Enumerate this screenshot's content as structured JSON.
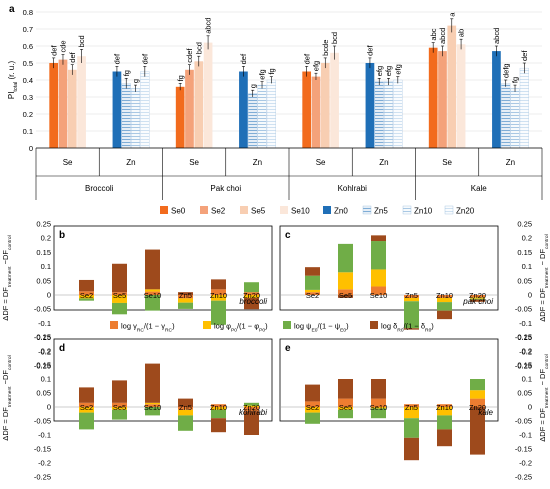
{
  "chart_data": [
    {
      "type": "bar",
      "panel": "a",
      "ylabel_main": "PI",
      "ylabel_sub": "total",
      "ylabel_unit": "(r. u.)",
      "ylim": [
        0,
        0.8
      ],
      "yticks": [
        "0",
        "0.1",
        "0.2",
        "0.3",
        "0.4",
        "0.5",
        "0.6",
        "0.7",
        "0.8"
      ],
      "groups": [
        "Broccoli",
        "Pak choi",
        "Kohlrabi",
        "Kale"
      ],
      "subgroups": [
        "Se",
        "Zn"
      ],
      "legend": [
        "Se0",
        "Se2",
        "Se5",
        "Se10",
        "Zn0",
        "Zn5",
        "Zn10",
        "Zn20"
      ],
      "series_colors": [
        "#f26b1d",
        "#f4a27a",
        "#f8ceb2",
        "#fbe7da",
        "#1f6fb7",
        "#7fadd6",
        "#b1cfe8",
        "#d9e8f4"
      ],
      "series_hatched": [
        false,
        false,
        false,
        false,
        false,
        true,
        true,
        true
      ],
      "values": [
        [
          0.5,
          0.52,
          0.46,
          0.54,
          0.45,
          0.38,
          0.35,
          0.45
        ],
        [
          0.36,
          0.46,
          0.51,
          0.62,
          0.45,
          0.32,
          0.37,
          0.4
        ],
        [
          0.45,
          0.42,
          0.5,
          0.56,
          0.5,
          0.39,
          0.39,
          0.4
        ],
        [
          0.59,
          0.57,
          0.72,
          0.61,
          0.57,
          0.38,
          0.35,
          0.47
        ]
      ],
      "errors": [
        [
          0.03,
          0.03,
          0.03,
          0.04,
          0.03,
          0.03,
          0.02,
          0.03
        ],
        [
          0.02,
          0.03,
          0.03,
          0.04,
          0.03,
          0.02,
          0.02,
          0.02
        ],
        [
          0.03,
          0.02,
          0.03,
          0.04,
          0.03,
          0.02,
          0.02,
          0.02
        ],
        [
          0.03,
          0.03,
          0.04,
          0.03,
          0.03,
          0.02,
          0.02,
          0.03
        ]
      ],
      "letters": [
        [
          "def",
          "cde",
          "def",
          "bcd",
          "def",
          "fg",
          "g",
          "def"
        ],
        [
          "fg",
          "cdef",
          "bcd",
          "abcd",
          "def",
          "g",
          "efg",
          "fg"
        ],
        [
          "def",
          "efg",
          "bcde",
          "bcd",
          "def",
          "efg",
          "efg",
          "efg"
        ],
        [
          "abc",
          "abcd",
          "a",
          "ab",
          "abcd",
          "defg",
          "fg",
          "def"
        ]
      ]
    },
    {
      "type": "bar",
      "stacked": true,
      "panels": [
        "b",
        "c",
        "d",
        "e"
      ],
      "crops": [
        "broccoli",
        "pak choi",
        "kohlrabi",
        "kale"
      ],
      "categories": [
        "Se2",
        "Se5",
        "Se10",
        "Zn5",
        "Zn10",
        "Zn20"
      ],
      "ylabel_left": "ΔDF = DF",
      "ylabel_left_sub": "treatment",
      "ylabel_left_end": " −DF",
      "ylabel_left_sub2": "control",
      "ylabel_right": "ΔDF = DF",
      "ylabel_right_sub": "treatment",
      "ylabel_right_mid": " − DF",
      "ylabel_right_sub2": "control",
      "ylim": [
        -0.25,
        0.25
      ],
      "yticks": [
        "0.25",
        "0.2",
        "0.15",
        "0.1",
        "0.05",
        "0",
        "-0.05",
        "-0.1",
        "-0.15",
        "-0.2",
        "-0.25"
      ],
      "legend": [
        {
          "main": "log γ",
          "sub": "RC",
          "rest": "/(1 − γ",
          "sub2": "RC",
          "end": ")"
        },
        {
          "main": "log φ",
          "sub": "P0",
          "rest": "/(1 − φ",
          "sub2": "P0",
          "end": ")"
        },
        {
          "main": "log ψ",
          "sub": "E0",
          "rest": "/(1 − ψ",
          "sub2": "E0",
          "end": ")"
        },
        {
          "main": "log δ",
          "sub": "R0",
          "rest": "/(1 − δ",
          "sub2": "R0",
          "end": ")"
        }
      ],
      "component_colors": [
        "#ed7d31",
        "#ffc000",
        "#70ad47",
        "#9e4a1c"
      ],
      "series": [
        {
          "crop": "broccoli",
          "components": [
            [
              0.013,
              0.01,
              0.012,
              -0.012,
              0.02,
              0.01
            ],
            [
              -0.012,
              -0.028,
              0.008,
              -0.015,
              -0.02,
              -0.01
            ],
            [
              -0.008,
              -0.04,
              -0.055,
              -0.022,
              -0.085,
              0.035
            ],
            [
              0.04,
              0.1,
              0.14,
              0.01,
              0.035,
              -0.04
            ]
          ]
        },
        {
          "crop": "pak choi",
          "components": [
            [
              0.01,
              0.02,
              0.03,
              -0.01,
              -0.01,
              -0.008
            ],
            [
              0.008,
              0.06,
              0.06,
              -0.012,
              -0.015,
              -0.005
            ],
            [
              0.05,
              0.1,
              0.1,
              -0.095,
              -0.03,
              -0.003
            ],
            [
              0.03,
              -0.01,
              0.02,
              -0.005,
              -0.03,
              -0.008
            ]
          ]
        },
        {
          "crop": "kohlrabi",
          "components": [
            [
              0.015,
              0.015,
              0.01,
              -0.01,
              0.01,
              -0.015
            ],
            [
              -0.02,
              -0.01,
              0.005,
              -0.02,
              -0.01,
              0.005
            ],
            [
              -0.06,
              -0.035,
              -0.03,
              -0.055,
              -0.03,
              0.01
            ],
            [
              0.055,
              0.08,
              0.14,
              0.03,
              -0.05,
              -0.085
            ]
          ]
        },
        {
          "crop": "kale",
          "components": [
            [
              0.02,
              0.03,
              0.03,
              0.01,
              0.01,
              0.03
            ],
            [
              -0.02,
              -0.01,
              -0.005,
              -0.04,
              -0.03,
              0.03
            ],
            [
              -0.04,
              -0.03,
              -0.035,
              -0.07,
              -0.05,
              0.04
            ],
            [
              0.06,
              0.07,
              0.07,
              -0.08,
              -0.06,
              -0.17
            ]
          ]
        }
      ]
    }
  ]
}
